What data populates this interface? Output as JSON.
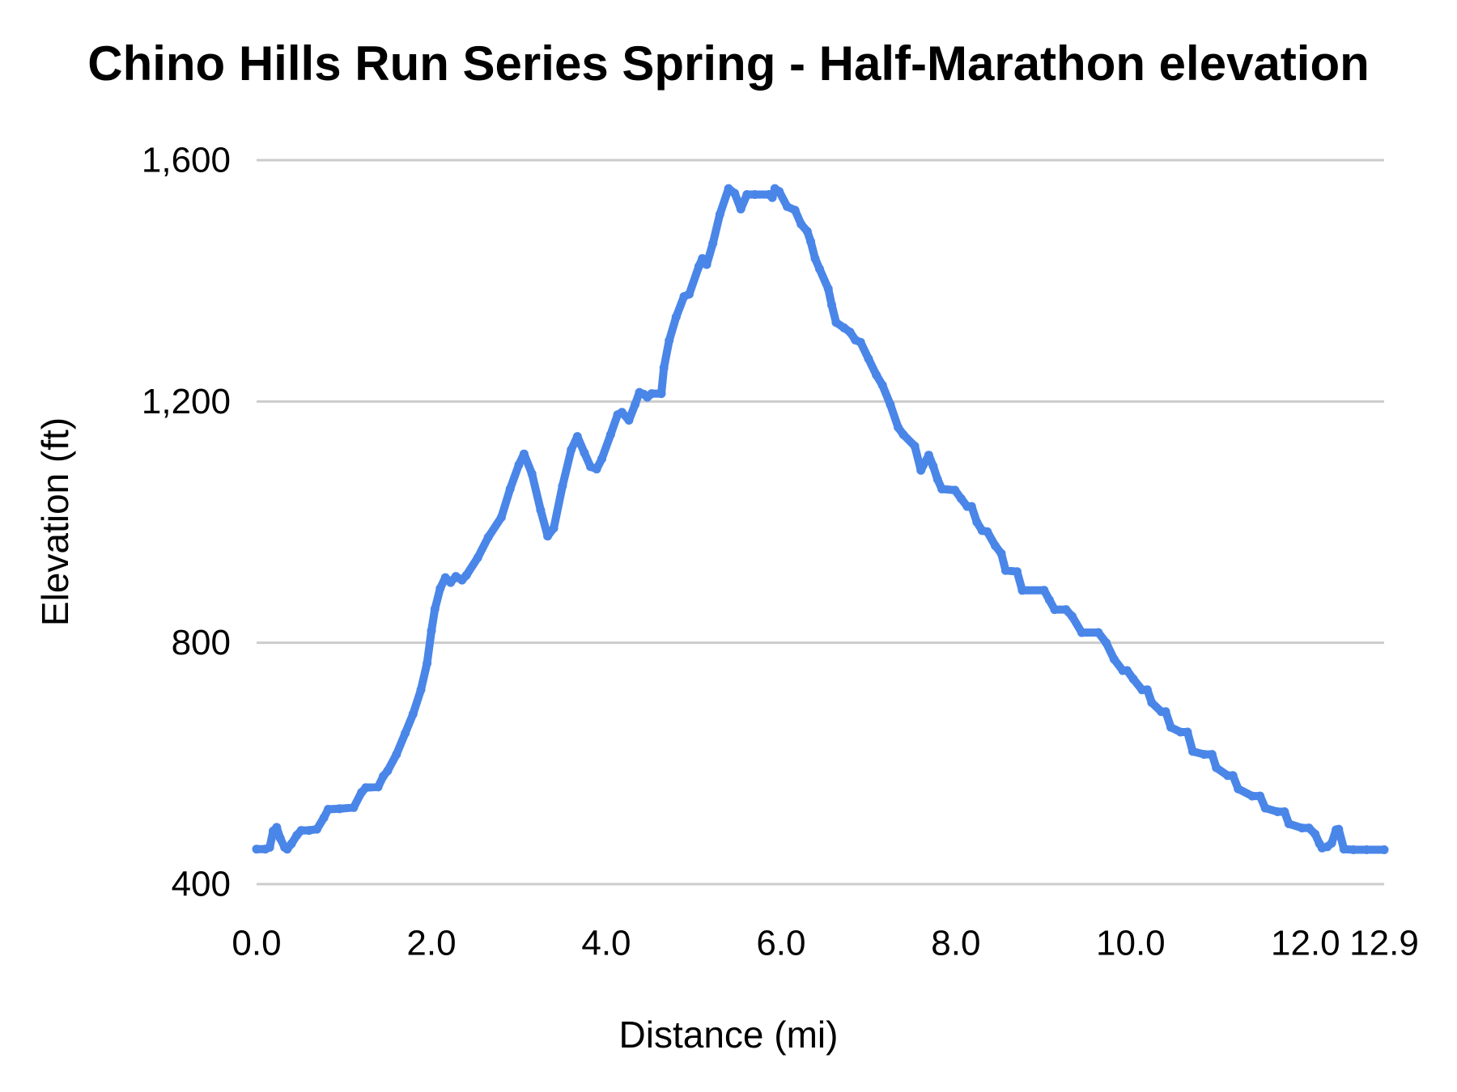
{
  "colors": {
    "line": "#4a86e8",
    "grid": "#cccccc",
    "text": "#000000",
    "background": "#ffffff"
  },
  "chart_data": {
    "type": "line",
    "title": "Chino Hills Run Series Spring - Half-Marathon elevation",
    "xlabel": "Distance (mi)",
    "ylabel": "Elevation (ft)",
    "xlim": [
      0,
      12.9
    ],
    "ylim": [
      400,
      1600
    ],
    "grid": "horizontal-only",
    "legend": "none",
    "x_ticks": [
      {
        "v": 0.0,
        "label": "0.0"
      },
      {
        "v": 2.0,
        "label": "2.0"
      },
      {
        "v": 4.0,
        "label": "4.0"
      },
      {
        "v": 6.0,
        "label": "6.0"
      },
      {
        "v": 8.0,
        "label": "8.0"
      },
      {
        "v": 10.0,
        "label": "10.0"
      },
      {
        "v": 12.0,
        "label": "12.0"
      },
      {
        "v": 12.9,
        "label": "12.9"
      }
    ],
    "y_ticks": [
      {
        "v": 400,
        "label": "400"
      },
      {
        "v": 800,
        "label": "800"
      },
      {
        "v": 1200,
        "label": "1,200"
      },
      {
        "v": 1600,
        "label": "1,600"
      }
    ],
    "series": [
      {
        "name": "Elevation (ft)",
        "points": [
          [
            0.0,
            458
          ],
          [
            0.1,
            458
          ],
          [
            0.15,
            461
          ],
          [
            0.19,
            488
          ],
          [
            0.23,
            494
          ],
          [
            0.27,
            476
          ],
          [
            0.32,
            461
          ],
          [
            0.35,
            458
          ],
          [
            0.4,
            467
          ],
          [
            0.46,
            481
          ],
          [
            0.51,
            489
          ],
          [
            0.6,
            489
          ],
          [
            0.69,
            491
          ],
          [
            0.77,
            510
          ],
          [
            0.82,
            524
          ],
          [
            0.95,
            525
          ],
          [
            1.11,
            527
          ],
          [
            1.2,
            552
          ],
          [
            1.25,
            560
          ],
          [
            1.39,
            561
          ],
          [
            1.45,
            579
          ],
          [
            1.5,
            588
          ],
          [
            1.6,
            615
          ],
          [
            1.7,
            650
          ],
          [
            1.79,
            682
          ],
          [
            1.88,
            722
          ],
          [
            1.95,
            766
          ],
          [
            2.0,
            820
          ],
          [
            2.04,
            856
          ],
          [
            2.1,
            890
          ],
          [
            2.16,
            908
          ],
          [
            2.22,
            900
          ],
          [
            2.28,
            910
          ],
          [
            2.35,
            904
          ],
          [
            2.4,
            912
          ],
          [
            2.53,
            941
          ],
          [
            2.65,
            975
          ],
          [
            2.8,
            1008
          ],
          [
            2.9,
            1055
          ],
          [
            3.0,
            1095
          ],
          [
            3.06,
            1113
          ],
          [
            3.15,
            1080
          ],
          [
            3.25,
            1020
          ],
          [
            3.33,
            977
          ],
          [
            3.4,
            990
          ],
          [
            3.5,
            1060
          ],
          [
            3.6,
            1120
          ],
          [
            3.67,
            1142
          ],
          [
            3.75,
            1115
          ],
          [
            3.82,
            1092
          ],
          [
            3.89,
            1088
          ],
          [
            3.95,
            1105
          ],
          [
            4.05,
            1145
          ],
          [
            4.13,
            1178
          ],
          [
            4.18,
            1182
          ],
          [
            4.26,
            1169
          ],
          [
            4.33,
            1195
          ],
          [
            4.38,
            1215
          ],
          [
            4.43,
            1212
          ],
          [
            4.47,
            1207
          ],
          [
            4.52,
            1213
          ],
          [
            4.63,
            1213
          ],
          [
            4.66,
            1256
          ],
          [
            4.72,
            1301
          ],
          [
            4.8,
            1340
          ],
          [
            4.89,
            1374
          ],
          [
            4.95,
            1378
          ],
          [
            5.06,
            1424
          ],
          [
            5.1,
            1437
          ],
          [
            5.15,
            1427
          ],
          [
            5.22,
            1462
          ],
          [
            5.3,
            1510
          ],
          [
            5.4,
            1553
          ],
          [
            5.47,
            1545
          ],
          [
            5.54,
            1519
          ],
          [
            5.61,
            1543
          ],
          [
            5.7,
            1543
          ],
          [
            5.86,
            1543
          ],
          [
            5.9,
            1538
          ],
          [
            5.93,
            1553
          ],
          [
            5.98,
            1548
          ],
          [
            6.07,
            1523
          ],
          [
            6.16,
            1517
          ],
          [
            6.23,
            1494
          ],
          [
            6.3,
            1482
          ],
          [
            6.34,
            1465
          ],
          [
            6.39,
            1437
          ],
          [
            6.44,
            1420
          ],
          [
            6.54,
            1387
          ],
          [
            6.58,
            1360
          ],
          [
            6.63,
            1331
          ],
          [
            6.72,
            1322
          ],
          [
            6.79,
            1315
          ],
          [
            6.85,
            1302
          ],
          [
            6.91,
            1298
          ],
          [
            7.0,
            1271
          ],
          [
            7.09,
            1244
          ],
          [
            7.16,
            1227
          ],
          [
            7.25,
            1195
          ],
          [
            7.34,
            1157
          ],
          [
            7.4,
            1145
          ],
          [
            7.53,
            1126
          ],
          [
            7.6,
            1086
          ],
          [
            7.69,
            1111
          ],
          [
            7.74,
            1093
          ],
          [
            7.79,
            1071
          ],
          [
            7.84,
            1055
          ],
          [
            7.99,
            1053
          ],
          [
            8.06,
            1039
          ],
          [
            8.13,
            1026
          ],
          [
            8.18,
            1026
          ],
          [
            8.24,
            1000
          ],
          [
            8.3,
            986
          ],
          [
            8.36,
            984
          ],
          [
            8.45,
            961
          ],
          [
            8.52,
            948
          ],
          [
            8.57,
            920
          ],
          [
            8.7,
            918
          ],
          [
            8.76,
            887
          ],
          [
            9.01,
            887
          ],
          [
            9.07,
            871
          ],
          [
            9.13,
            855
          ],
          [
            9.26,
            855
          ],
          [
            9.33,
            844
          ],
          [
            9.44,
            817
          ],
          [
            9.63,
            817
          ],
          [
            9.72,
            800
          ],
          [
            9.81,
            773
          ],
          [
            9.91,
            754
          ],
          [
            9.96,
            754
          ],
          [
            10.03,
            740
          ],
          [
            10.13,
            722
          ],
          [
            10.19,
            722
          ],
          [
            10.24,
            701
          ],
          [
            10.35,
            686
          ],
          [
            10.4,
            686
          ],
          [
            10.46,
            660
          ],
          [
            10.57,
            652
          ],
          [
            10.65,
            652
          ],
          [
            10.71,
            620
          ],
          [
            10.84,
            615
          ],
          [
            10.93,
            615
          ],
          [
            10.98,
            593
          ],
          [
            11.11,
            580
          ],
          [
            11.17,
            580
          ],
          [
            11.23,
            558
          ],
          [
            11.39,
            546
          ],
          [
            11.48,
            546
          ],
          [
            11.54,
            526
          ],
          [
            11.68,
            520
          ],
          [
            11.76,
            520
          ],
          [
            11.81,
            500
          ],
          [
            11.96,
            493
          ],
          [
            12.04,
            493
          ],
          [
            12.11,
            483
          ],
          [
            12.16,
            467
          ],
          [
            12.19,
            460
          ],
          [
            12.25,
            462
          ],
          [
            12.3,
            468
          ],
          [
            12.35,
            490
          ],
          [
            12.38,
            491
          ],
          [
            12.44,
            458
          ],
          [
            12.55,
            457
          ],
          [
            12.7,
            457
          ],
          [
            12.9,
            457
          ]
        ]
      }
    ]
  }
}
